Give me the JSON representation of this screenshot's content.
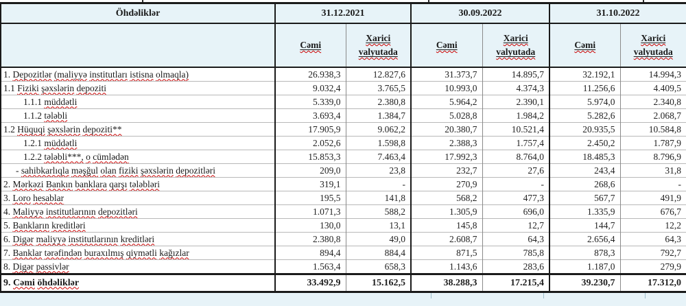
{
  "header": {
    "title": "Öhdəliklər",
    "periods": [
      "31.12.2021",
      "30.09.2022",
      "31.10.2022"
    ],
    "sub_total": "Cəmi",
    "sub_foreign": "Xarici valyutada"
  },
  "rows": [
    {
      "label": "1. Depozitlər (maliyyə institutları istisna olmaqla)",
      "indent": 0,
      "values": [
        "26.938,3",
        "12.827,6",
        "31.373,7",
        "14.895,7",
        "32.192,1",
        "14.994,3"
      ]
    },
    {
      "label": "1.1 Fiziki şəxslərin depoziti",
      "indent": 0,
      "values": [
        "9.032,4",
        "3.765,5",
        "10.993,0",
        "4.374,3",
        "11.256,6",
        "4.409,5"
      ]
    },
    {
      "label": "1.1.1 müddətli",
      "indent": 1,
      "values": [
        "5.339,0",
        "2.380,8",
        "5.964,2",
        "2.390,1",
        "5.974,0",
        "2.340,8"
      ]
    },
    {
      "label": "1.1.2 tələbli",
      "indent": 1,
      "values": [
        "3.693,4",
        "1.384,7",
        "5.028,8",
        "1.984,2",
        "5.282,6",
        "2.068,7"
      ]
    },
    {
      "label": "1.2 Hüquqi şəxslərin depoziti**",
      "indent": 0,
      "values": [
        "17.905,9",
        "9.062,2",
        "20.380,7",
        "10.521,4",
        "20.935,5",
        "10.584,8"
      ]
    },
    {
      "label": "1.2.1 müddətli",
      "indent": 1,
      "values": [
        "2.052,6",
        "1.598,8",
        "2.388,3",
        "1.757,4",
        "2.450,2",
        "1.787,9"
      ]
    },
    {
      "label": "1.2.2 tələbli***, o cümlədən",
      "indent": 1,
      "values": [
        "15.853,3",
        "7.463,4",
        "17.992,3",
        "8.764,0",
        "18.485,3",
        "8.796,9"
      ]
    },
    {
      "label": "- sahibkarlıqla məşğul olan fiziki şəxslərin depozitləri",
      "indent": 2,
      "values": [
        "209,0",
        "23,8",
        "232,7",
        "27,6",
        "243,4",
        "31,8"
      ]
    },
    {
      "label": "2. Mərkəzi Bankın banklara qarşı tələbləri",
      "indent": 0,
      "values": [
        "319,1",
        "-",
        "270,9",
        "-",
        "268,6",
        "-"
      ]
    },
    {
      "label": "3. Loro hesablar",
      "indent": 0,
      "values": [
        "195,5",
        "141,8",
        "568,2",
        "477,3",
        "567,7",
        "491,9"
      ]
    },
    {
      "label": "4. Maliyyə institutlarının  depozitləri",
      "indent": 0,
      "values": [
        "1.071,3",
        "588,2",
        "1.305,9",
        "696,0",
        "1.335,9",
        "676,7"
      ]
    },
    {
      "label": "5. Bankların kreditləri",
      "indent": 0,
      "values": [
        "130,0",
        "13,1",
        "145,8",
        "12,7",
        "144,7",
        "12,2"
      ]
    },
    {
      "label": "6. Digər maliyyə institutlarının kreditləri",
      "indent": 0,
      "values": [
        "2.380,8",
        "49,0",
        "2.608,7",
        "64,3",
        "2.656,4",
        "64,3"
      ]
    },
    {
      "label": "7. Banklar tərəfindən buraxılmış qiymətli kağızlar",
      "indent": 0,
      "values": [
        "894,4",
        "884,4",
        "871,5",
        "785,8",
        "878,3",
        "792,7"
      ]
    },
    {
      "label": "8. Digər passivlər",
      "indent": 0,
      "values": [
        "1.563,4",
        "658,3",
        "1.143,6",
        "283,6",
        "1.187,0",
        "279,9"
      ]
    }
  ],
  "total_row": {
    "label": "9. Cəmi öhdəliklər",
    "values": [
      "33.492,9",
      "15.162,5",
      "38.288,3",
      "17.215,4",
      "39.230,7",
      "17.312,0"
    ]
  },
  "colors": {
    "header_bg": "#e7f3f8",
    "border_strong": "#1a1a1a",
    "border_thin": "#8a8a8a",
    "row_line": "#b8b8b8",
    "spellcheck_red": "#cc0000"
  }
}
